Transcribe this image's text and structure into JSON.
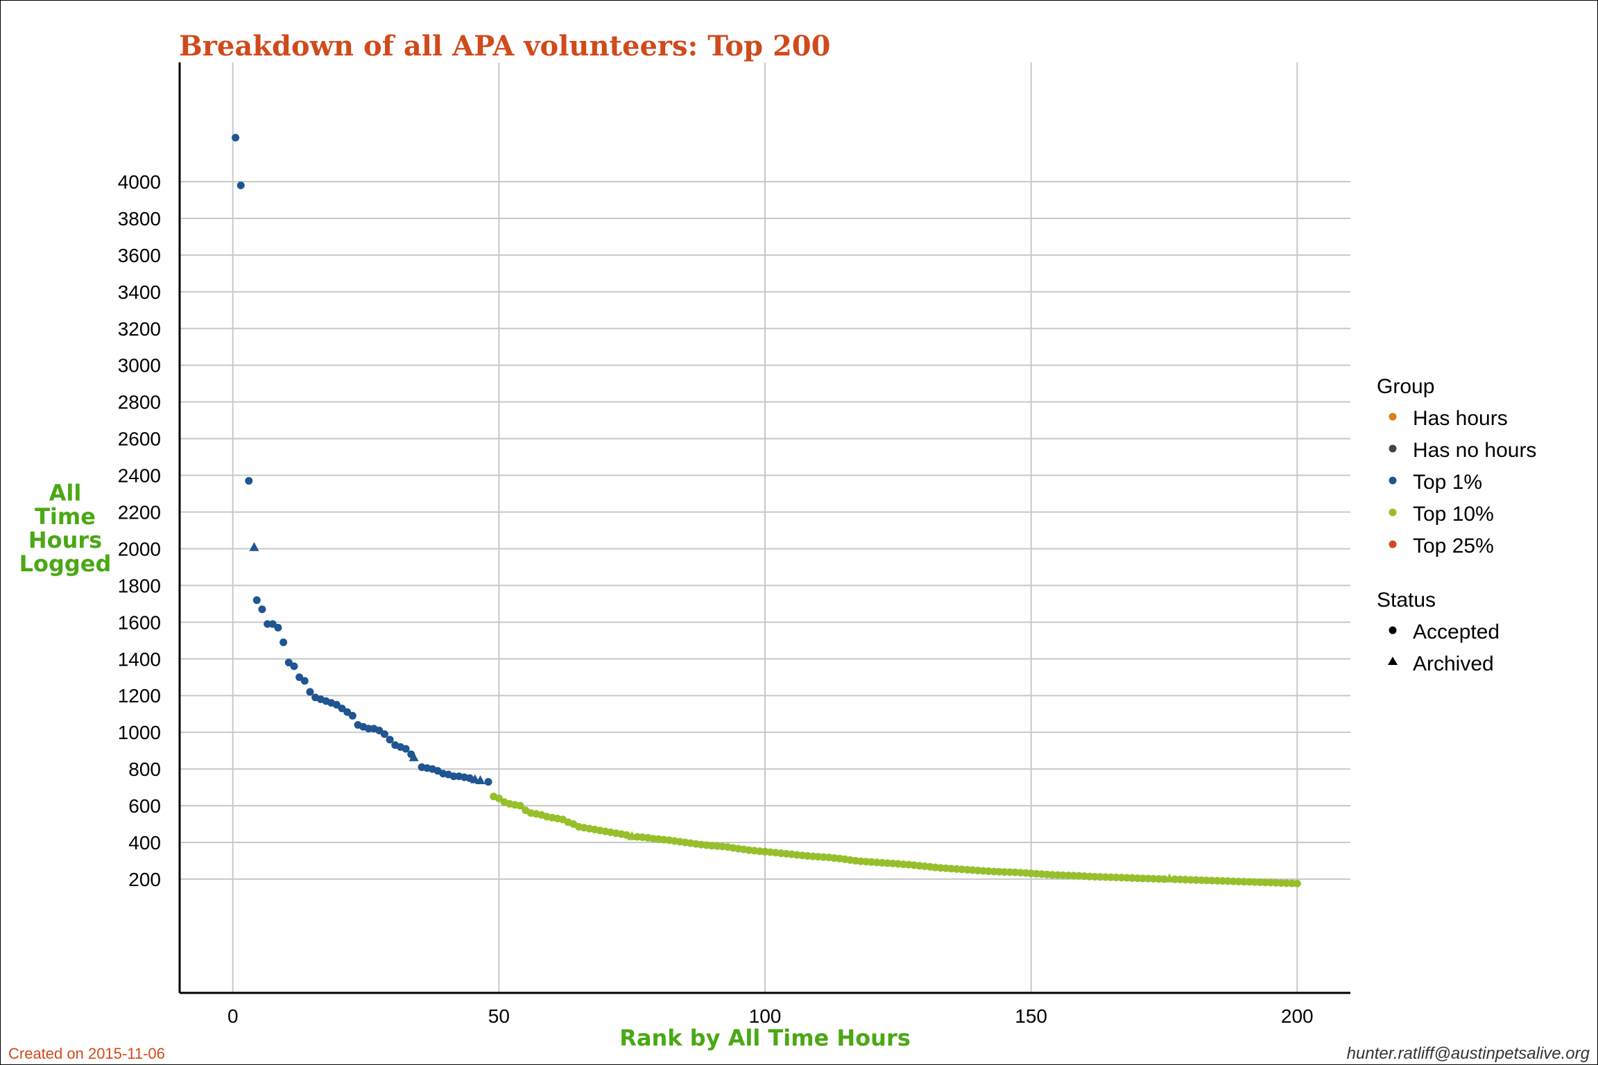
{
  "chart_data": {
    "type": "scatter",
    "title": "Breakdown of all APA volunteers: Top 200",
    "xlabel": "Rank by All Time Hours",
    "ylabel": [
      "All",
      "Time",
      "Hours",
      "Logged"
    ],
    "xlim": [
      -10,
      210
    ],
    "ylim": [
      -420,
      4650
    ],
    "x_ticks": [
      0,
      50,
      100,
      150,
      200
    ],
    "y_ticks": [
      200,
      400,
      600,
      800,
      1000,
      1200,
      1400,
      1600,
      1800,
      2000,
      2200,
      2400,
      2600,
      2800,
      3000,
      3200,
      3400,
      3600,
      3800,
      4000
    ],
    "grid": true,
    "legend_position": "right",
    "legend": {
      "group_title": "Group",
      "groups": [
        {
          "name": "Has hours",
          "color": "#e07b1a"
        },
        {
          "name": "Has no hours",
          "color": "#444444"
        },
        {
          "name": "Top 1%",
          "color": "#1f5591"
        },
        {
          "name": "Top 10%",
          "color": "#97bf2b"
        },
        {
          "name": "Top 25%",
          "color": "#d04a1c"
        }
      ],
      "status_title": "Status",
      "statuses": [
        {
          "name": "Accepted",
          "shape": "circle"
        },
        {
          "name": "Archived",
          "shape": "triangle"
        }
      ]
    },
    "series": [
      {
        "name": "Top 1%",
        "color": "#1f5591",
        "points": [
          [
            0.5,
            4240,
            "circle"
          ],
          [
            1.5,
            3980,
            "circle"
          ],
          [
            3,
            2370,
            "circle"
          ],
          [
            4,
            2010,
            "triangle"
          ],
          [
            4.5,
            1720,
            "circle"
          ],
          [
            5.5,
            1670,
            "circle"
          ],
          [
            6.5,
            1590,
            "circle"
          ],
          [
            7.5,
            1590,
            "circle"
          ],
          [
            8.5,
            1570,
            "circle"
          ],
          [
            9.5,
            1490,
            "circle"
          ],
          [
            10.5,
            1380,
            "circle"
          ],
          [
            11.5,
            1360,
            "circle"
          ],
          [
            12.5,
            1300,
            "circle"
          ],
          [
            13.5,
            1280,
            "circle"
          ],
          [
            14.5,
            1220,
            "circle"
          ],
          [
            15.5,
            1190,
            "circle"
          ],
          [
            16.5,
            1180,
            "circle"
          ],
          [
            17.5,
            1170,
            "circle"
          ],
          [
            18.5,
            1160,
            "circle"
          ],
          [
            19.5,
            1150,
            "circle"
          ],
          [
            20.5,
            1130,
            "circle"
          ],
          [
            21.5,
            1110,
            "circle"
          ],
          [
            22.5,
            1090,
            "circle"
          ],
          [
            23.5,
            1040,
            "circle"
          ],
          [
            24.5,
            1030,
            "circle"
          ],
          [
            25.5,
            1020,
            "circle"
          ],
          [
            26.5,
            1020,
            "circle"
          ],
          [
            27.5,
            1010,
            "circle"
          ],
          [
            28.5,
            990,
            "circle"
          ],
          [
            29.5,
            960,
            "circle"
          ],
          [
            30.5,
            930,
            "circle"
          ],
          [
            31.5,
            920,
            "circle"
          ],
          [
            32.5,
            910,
            "circle"
          ],
          [
            33.5,
            880,
            "circle"
          ],
          [
            34,
            865,
            "triangle"
          ],
          [
            35.5,
            810,
            "circle"
          ],
          [
            36.5,
            805,
            "circle"
          ],
          [
            37.5,
            800,
            "circle"
          ],
          [
            38.5,
            790,
            "circle"
          ],
          [
            39.5,
            775,
            "circle"
          ],
          [
            40.5,
            770,
            "circle"
          ],
          [
            41.5,
            760,
            "circle"
          ],
          [
            42.5,
            760,
            "circle"
          ],
          [
            43.5,
            755,
            "circle"
          ],
          [
            44.5,
            750,
            "circle"
          ],
          [
            45.5,
            745,
            "triangle"
          ],
          [
            46.5,
            740,
            "triangle"
          ],
          [
            48,
            730,
            "circle"
          ]
        ]
      },
      {
        "name": "Top 10%",
        "color": "#97bf2b",
        "points": [
          [
            49,
            650,
            "circle"
          ],
          [
            50,
            640,
            "circle"
          ],
          [
            51,
            620,
            "circle"
          ],
          [
            52,
            610,
            "circle"
          ],
          [
            53,
            605,
            "circle"
          ],
          [
            54,
            600,
            "circle"
          ],
          [
            55,
            575,
            "circle"
          ],
          [
            56,
            560,
            "circle"
          ],
          [
            57,
            555,
            "circle"
          ],
          [
            58,
            550,
            "circle"
          ],
          [
            59,
            540,
            "circle"
          ],
          [
            60,
            535,
            "circle"
          ],
          [
            61,
            530,
            "circle"
          ],
          [
            62,
            525,
            "circle"
          ],
          [
            63,
            510,
            "circle"
          ],
          [
            64,
            500,
            "circle"
          ],
          [
            65,
            485,
            "circle"
          ],
          [
            66,
            480,
            "circle"
          ],
          [
            67,
            475,
            "circle"
          ],
          [
            68,
            470,
            "circle"
          ],
          [
            69,
            465,
            "circle"
          ],
          [
            70,
            460,
            "circle"
          ],
          [
            71,
            455,
            "circle"
          ],
          [
            72,
            450,
            "circle"
          ],
          [
            73,
            445,
            "circle"
          ],
          [
            74,
            440,
            "circle"
          ],
          [
            75,
            435,
            "triangle"
          ],
          [
            76,
            430,
            "circle"
          ],
          [
            77,
            428,
            "circle"
          ],
          [
            78,
            425,
            "circle"
          ],
          [
            79,
            420,
            "circle"
          ],
          [
            80,
            418,
            "circle"
          ],
          [
            81,
            415,
            "circle"
          ],
          [
            82,
            412,
            "circle"
          ],
          [
            83,
            408,
            "circle"
          ],
          [
            84,
            404,
            "circle"
          ],
          [
            85,
            400,
            "circle"
          ],
          [
            86,
            396,
            "circle"
          ],
          [
            87,
            392,
            "circle"
          ],
          [
            88,
            388,
            "circle"
          ],
          [
            89,
            385,
            "circle"
          ],
          [
            90,
            382,
            "circle"
          ],
          [
            91,
            380,
            "circle"
          ],
          [
            92,
            378,
            "circle"
          ],
          [
            93,
            375,
            "circle"
          ],
          [
            94,
            370,
            "circle"
          ],
          [
            95,
            366,
            "circle"
          ],
          [
            96,
            362,
            "circle"
          ],
          [
            97,
            358,
            "circle"
          ],
          [
            98,
            355,
            "circle"
          ],
          [
            99,
            352,
            "circle"
          ],
          [
            100,
            350,
            "circle"
          ],
          [
            101,
            347,
            "circle"
          ],
          [
            102,
            344,
            "circle"
          ],
          [
            103,
            341,
            "circle"
          ],
          [
            104,
            338,
            "circle"
          ],
          [
            105,
            335,
            "circle"
          ],
          [
            106,
            332,
            "circle"
          ],
          [
            107,
            329,
            "circle"
          ],
          [
            108,
            326,
            "circle"
          ],
          [
            109,
            324,
            "circle"
          ],
          [
            110,
            322,
            "circle"
          ],
          [
            111,
            320,
            "circle"
          ],
          [
            112,
            318,
            "circle"
          ],
          [
            113,
            315,
            "circle"
          ],
          [
            114,
            312,
            "circle"
          ],
          [
            115,
            308,
            "circle"
          ],
          [
            116,
            304,
            "circle"
          ],
          [
            117,
            300,
            "circle"
          ],
          [
            118,
            297,
            "circle"
          ],
          [
            119,
            295,
            "circle"
          ],
          [
            120,
            293,
            "circle"
          ],
          [
            121,
            291,
            "circle"
          ],
          [
            122,
            289,
            "circle"
          ],
          [
            123,
            287,
            "circle"
          ],
          [
            124,
            285,
            "circle"
          ],
          [
            125,
            283,
            "circle"
          ],
          [
            126,
            281,
            "circle"
          ],
          [
            127,
            279,
            "circle"
          ],
          [
            128,
            276,
            "circle"
          ],
          [
            129,
            273,
            "circle"
          ],
          [
            130,
            270,
            "circle"
          ],
          [
            131,
            267,
            "circle"
          ],
          [
            132,
            264,
            "circle"
          ],
          [
            133,
            261,
            "circle"
          ],
          [
            134,
            259,
            "circle"
          ],
          [
            135,
            257,
            "circle"
          ],
          [
            136,
            255,
            "circle"
          ],
          [
            137,
            253,
            "circle"
          ],
          [
            138,
            251,
            "circle"
          ],
          [
            139,
            249,
            "circle"
          ],
          [
            140,
            247,
            "circle"
          ],
          [
            141,
            245,
            "circle"
          ],
          [
            142,
            243,
            "circle"
          ],
          [
            143,
            241,
            "circle"
          ],
          [
            144,
            240,
            "circle"
          ],
          [
            145,
            239,
            "circle"
          ],
          [
            146,
            238,
            "circle"
          ],
          [
            147,
            237,
            "circle"
          ],
          [
            148,
            235,
            "circle"
          ],
          [
            149,
            233,
            "circle"
          ],
          [
            150,
            231,
            "circle"
          ],
          [
            151,
            229,
            "circle"
          ],
          [
            152,
            227,
            "circle"
          ],
          [
            153,
            225,
            "circle"
          ],
          [
            154,
            223,
            "circle"
          ],
          [
            155,
            222,
            "circle"
          ],
          [
            156,
            221,
            "circle"
          ],
          [
            157,
            220,
            "circle"
          ],
          [
            158,
            219,
            "circle"
          ],
          [
            159,
            218,
            "circle"
          ],
          [
            160,
            216,
            "circle"
          ],
          [
            161,
            214,
            "circle"
          ],
          [
            162,
            213,
            "circle"
          ],
          [
            163,
            212,
            "circle"
          ],
          [
            164,
            211,
            "circle"
          ],
          [
            165,
            210,
            "circle"
          ],
          [
            166,
            209,
            "circle"
          ],
          [
            167,
            208,
            "circle"
          ],
          [
            168,
            207,
            "circle"
          ],
          [
            169,
            206,
            "circle"
          ],
          [
            170,
            205,
            "circle"
          ],
          [
            171,
            204,
            "circle"
          ],
          [
            172,
            203,
            "circle"
          ],
          [
            173,
            202,
            "circle"
          ],
          [
            174,
            201,
            "circle"
          ],
          [
            175,
            200,
            "circle"
          ],
          [
            176,
            205,
            "triangle"
          ],
          [
            177,
            199,
            "circle"
          ],
          [
            178,
            198,
            "circle"
          ],
          [
            179,
            197,
            "circle"
          ],
          [
            180,
            196,
            "circle"
          ],
          [
            181,
            195,
            "circle"
          ],
          [
            182,
            194,
            "circle"
          ],
          [
            183,
            193,
            "circle"
          ],
          [
            184,
            192,
            "circle"
          ],
          [
            185,
            191,
            "circle"
          ],
          [
            186,
            190,
            "circle"
          ],
          [
            187,
            189,
            "circle"
          ],
          [
            188,
            188,
            "circle"
          ],
          [
            189,
            187,
            "circle"
          ],
          [
            190,
            186,
            "circle"
          ],
          [
            191,
            185,
            "circle"
          ],
          [
            192,
            184,
            "circle"
          ],
          [
            193,
            183,
            "circle"
          ],
          [
            194,
            182,
            "circle"
          ],
          [
            195,
            181,
            "circle"
          ],
          [
            196,
            180,
            "circle"
          ],
          [
            197,
            179,
            "circle"
          ],
          [
            198,
            178,
            "circle"
          ],
          [
            199,
            177,
            "circle"
          ],
          [
            200,
            176,
            "circle"
          ]
        ]
      }
    ]
  },
  "footer": {
    "created": "Created on 2015-11-06",
    "email": "hunter.ratliff@austinpetsalive.org"
  }
}
